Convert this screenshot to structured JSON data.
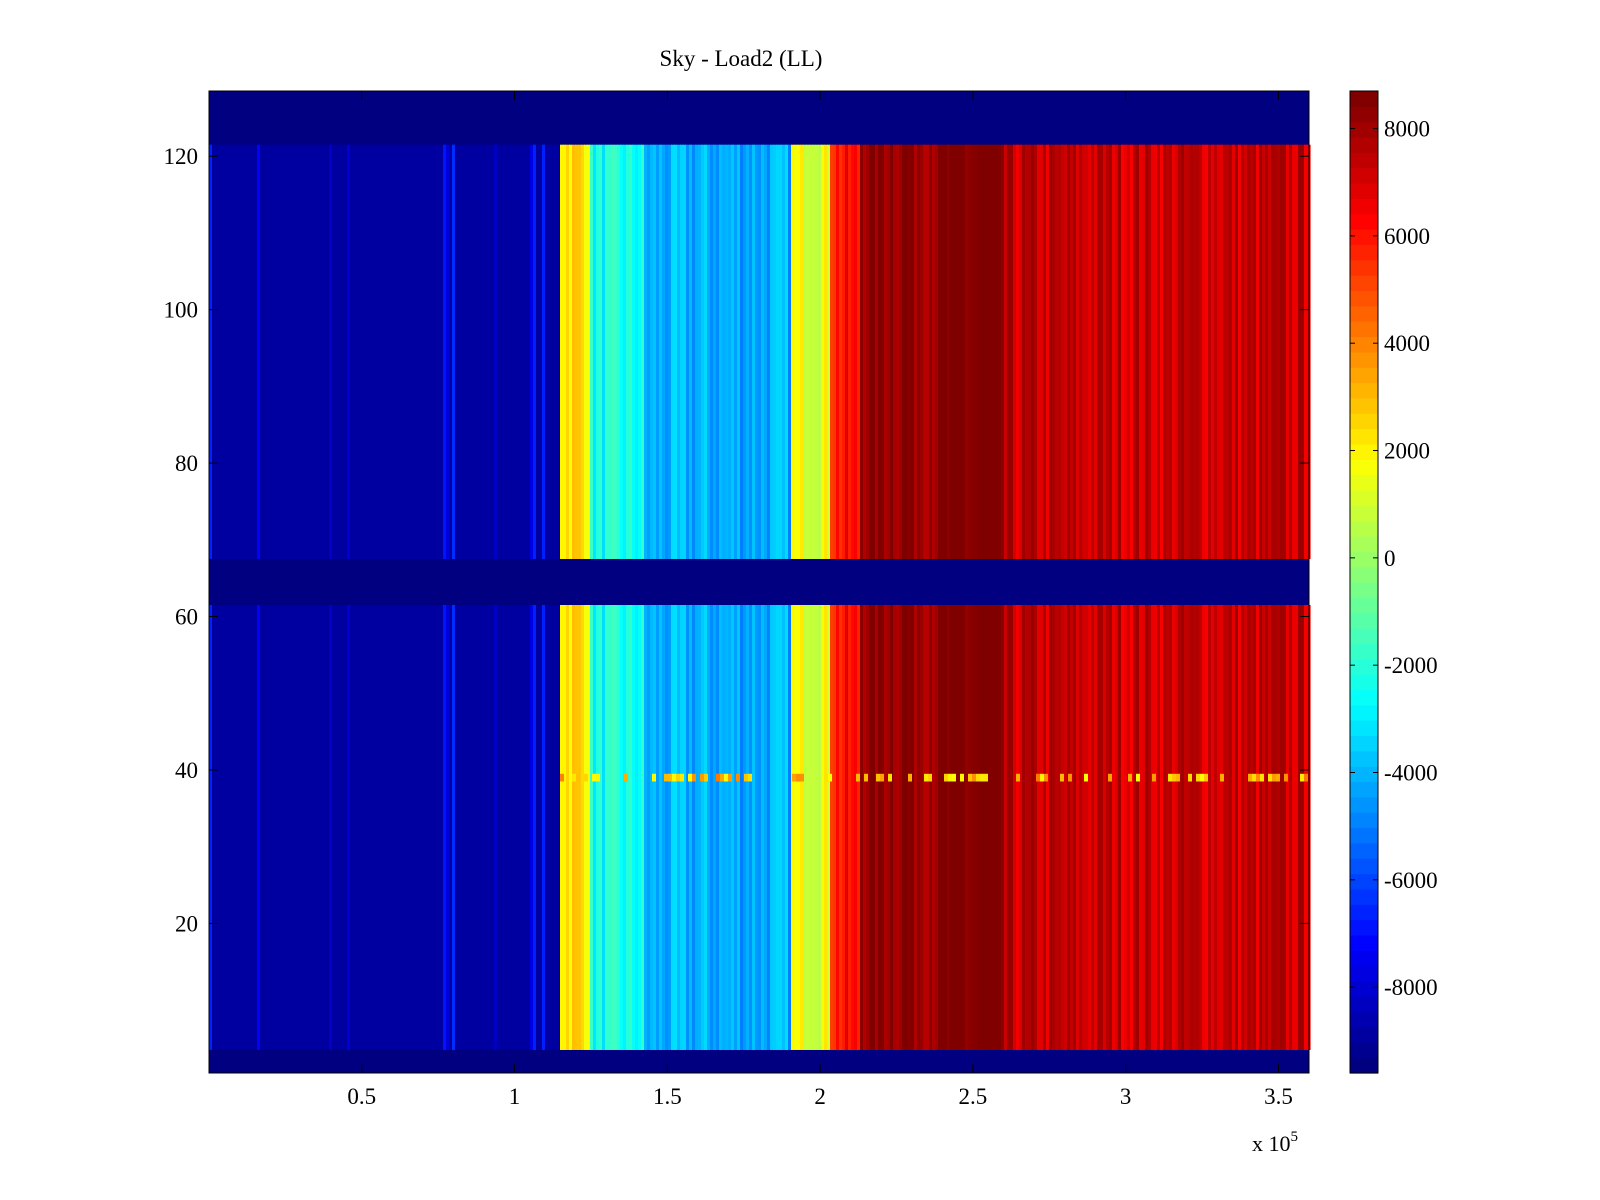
{
  "chart_data": {
    "type": "heatmap",
    "title": "Sky - Load2 (LL)",
    "xlabel": "",
    "ylabel": "",
    "x_multiplier_label": "x 10",
    "x_multiplier_exponent": "5",
    "xlim": [
      0,
      3.6
    ],
    "ylim": [
      0.5,
      128.5
    ],
    "x_ticks": [
      0.5,
      1,
      1.5,
      2,
      2.5,
      3,
      3.5
    ],
    "x_tick_labels": [
      "0.5",
      "1",
      "1.5",
      "2",
      "2.5",
      "3",
      "3.5"
    ],
    "y_ticks": [
      20,
      40,
      60,
      80,
      100,
      120
    ],
    "y_tick_labels": [
      "20",
      "40",
      "60",
      "80",
      "100",
      "120"
    ],
    "colormap": "jet",
    "clim": [
      -9600,
      8700
    ],
    "colorbar_ticks": [
      8000,
      6000,
      4000,
      2000,
      0,
      -2000,
      -4000,
      -6000,
      -8000
    ],
    "colorbar_tick_labels": [
      "8000",
      "6000",
      "4000",
      "2000",
      "0",
      "-2000",
      "-4000",
      "-6000",
      "-8000"
    ],
    "channel_rows": {
      "empty_bands": [
        [
          0.5,
          3.5
        ],
        [
          61.5,
          67.5
        ],
        [
          121.5,
          128.5
        ]
      ],
      "active_bands": [
        [
          3.5,
          61.5
        ],
        [
          67.5,
          121.5
        ]
      ]
    },
    "x_regions": [
      {
        "x": [
          0,
          1.15
        ],
        "value": -9000
      },
      {
        "x": [
          1.15,
          1.25
        ],
        "value": 2500
      },
      {
        "x": [
          1.25,
          1.42
        ],
        "value": -2500
      },
      {
        "x": [
          1.42,
          1.9
        ],
        "value": -4200
      },
      {
        "x": [
          1.9,
          2.03
        ],
        "value": 1500
      },
      {
        "x": [
          2.03,
          2.13
        ],
        "value": 6000
      },
      {
        "x": [
          2.13,
          2.6
        ],
        "value": 8600
      },
      {
        "x": [
          2.6,
          3.6
        ],
        "value": 7400
      }
    ],
    "highlighted_row": {
      "y": 39,
      "value": 3000
    }
  }
}
